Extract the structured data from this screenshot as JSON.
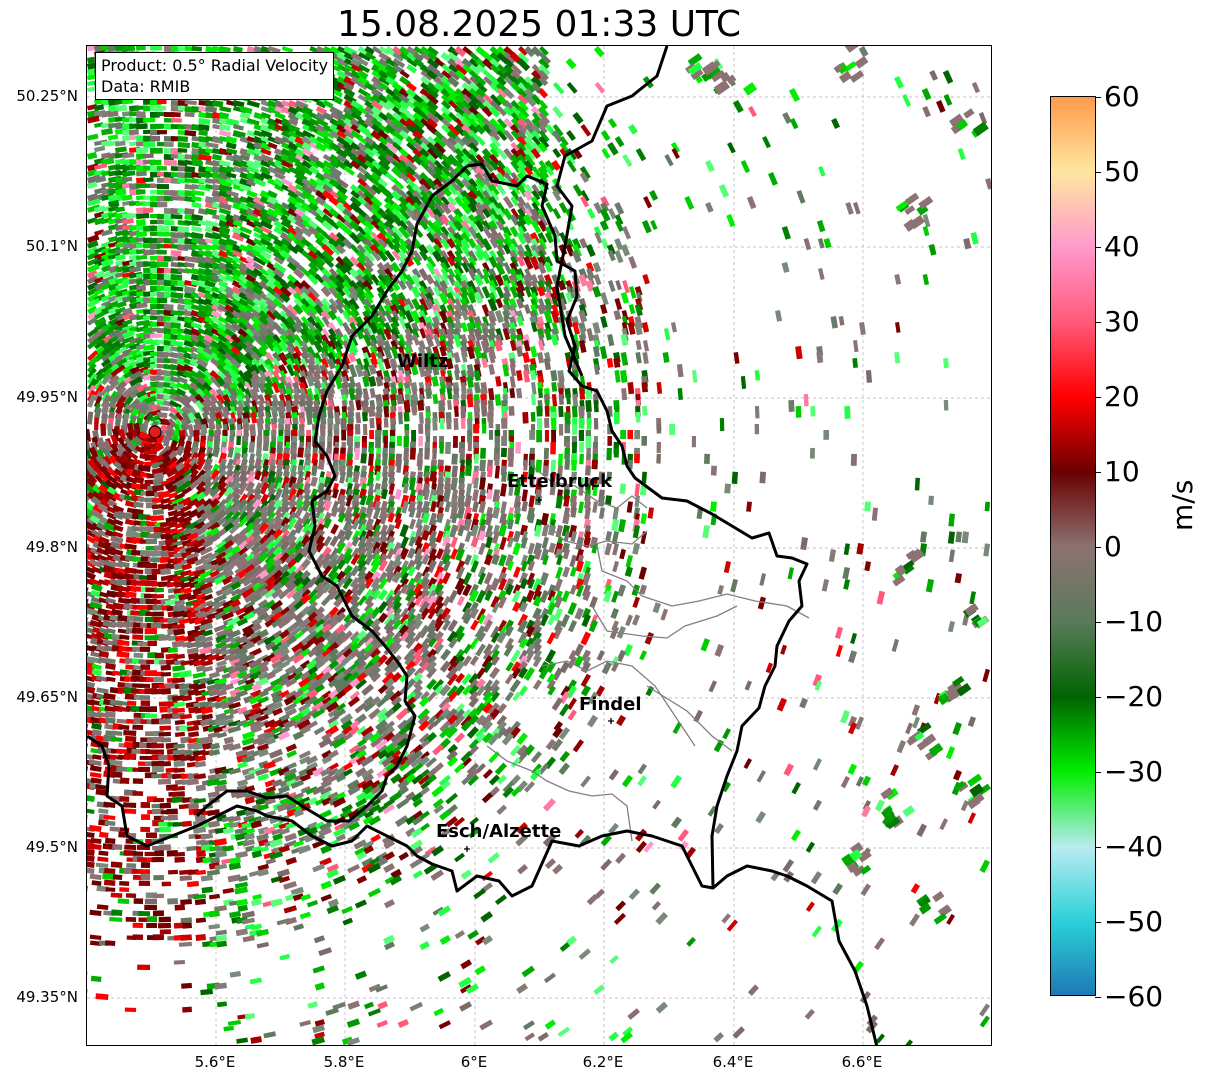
{
  "title": "15.08.2025 01:33 UTC",
  "info": {
    "product": "Product: 0.5° Radial Velocity",
    "data_source": "Data: RMIB"
  },
  "map": {
    "x_ticks": [
      "5.6°E",
      "5.8°E",
      "6°E",
      "6.2°E",
      "6.4°E",
      "6.6°E"
    ],
    "y_ticks": [
      "50.25°N",
      "50.1°N",
      "49.95°N",
      "49.8°N",
      "49.65°N",
      "49.5°N",
      "49.35°N"
    ],
    "cities": [
      {
        "name": "Wiltz"
      },
      {
        "name": "Ettelbruck"
      },
      {
        "name": "Findel"
      },
      {
        "name": "Esch/Alzette"
      }
    ],
    "radar_site_icon": "red-circle-marker",
    "city_marker_icon": "plus-marker",
    "border_colors": {
      "country": "#000000",
      "district": "#808080"
    },
    "gridlines": true
  },
  "colorbar": {
    "label": "m/s",
    "ticks": [
      "60",
      "50",
      "40",
      "30",
      "20",
      "10",
      "0",
      "−10",
      "−20",
      "−30",
      "−40",
      "−50",
      "−60"
    ],
    "range": [
      -60,
      60
    ],
    "colors": [
      "#1f77b4",
      "#2ad0d8",
      "#b8ecf0",
      "#00ee00",
      "#006400",
      "#5a7a5a",
      "#8c7272",
      "#6b0000",
      "#ff0000",
      "#ff5a7a",
      "#ff99cc",
      "#ffe6a0",
      "#ff9a4a"
    ]
  }
}
